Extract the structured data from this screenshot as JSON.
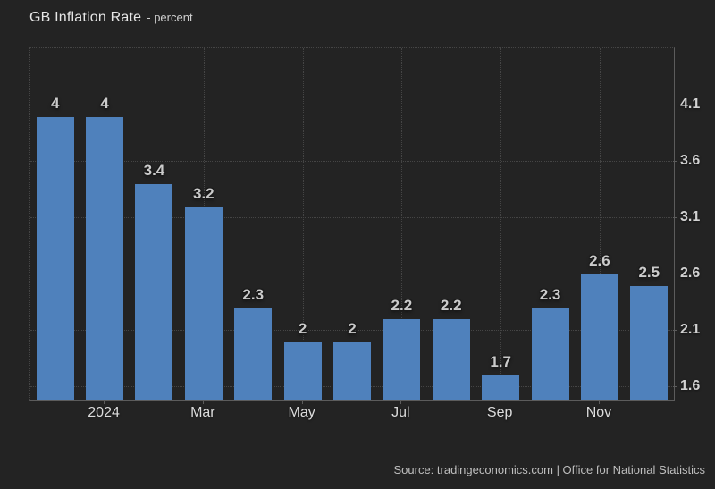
{
  "header": {
    "title": "GB Inflation Rate",
    "subtitle": "- percent"
  },
  "footer": {
    "source": "Source: tradingeconomics.com | Office for National Statistics"
  },
  "colors": {
    "background": "#232323",
    "bar": "#4f81bc",
    "grid": "#454545",
    "axis": "#5c5c5c"
  },
  "chart_data": {
    "type": "bar",
    "title": "GB Inflation Rate",
    "ylabel": "percent",
    "values": [
      4,
      4,
      3.4,
      3.2,
      2.3,
      2,
      2,
      2.2,
      2.2,
      1.7,
      2.3,
      2.6,
      2.5
    ],
    "bar_labels": [
      "4",
      "4",
      "3.4",
      "3.2",
      "2.3",
      "2",
      "2",
      "2.2",
      "2.2",
      "1.7",
      "2.3",
      "2.6",
      "2.5"
    ],
    "x_ticks": [
      {
        "slot": 1,
        "label": "2024"
      },
      {
        "slot": 3,
        "label": "Mar"
      },
      {
        "slot": 5,
        "label": "May"
      },
      {
        "slot": 7,
        "label": "Jul"
      },
      {
        "slot": 9,
        "label": "Sep"
      },
      {
        "slot": 11,
        "label": "Nov"
      }
    ],
    "y_ticks": [
      4.1,
      3.6,
      3.1,
      2.6,
      2.1,
      1.6
    ],
    "ylim": [
      1.48,
      4.61
    ],
    "grid": "dotted",
    "y_axis_side": "right",
    "legend": "none"
  }
}
